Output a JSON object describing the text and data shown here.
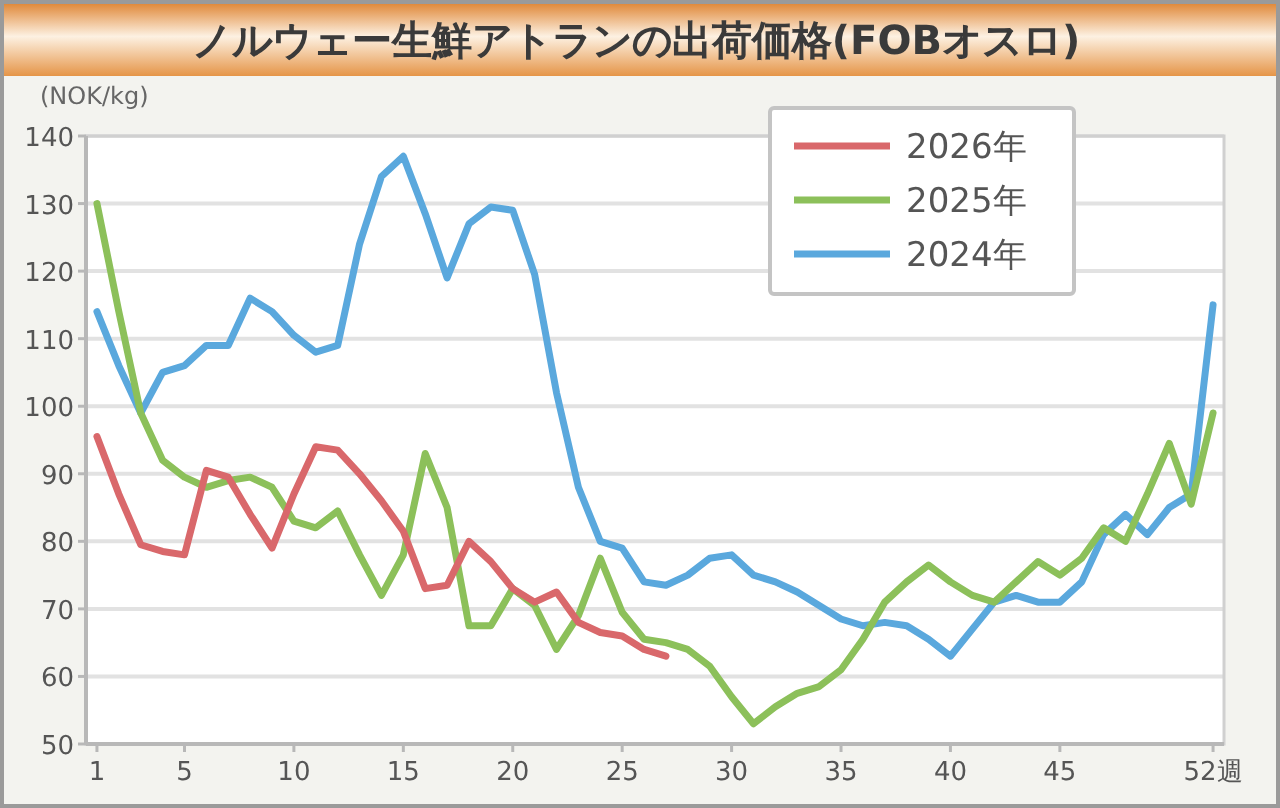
{
  "chart_data": {
    "type": "line",
    "title": "ノルウェー生鮮アトランの出荷価格(FOBオスロ)",
    "ylabel": "(NOK/kg)",
    "x": [
      1,
      2,
      3,
      4,
      5,
      6,
      7,
      8,
      9,
      10,
      11,
      12,
      13,
      14,
      15,
      16,
      17,
      18,
      19,
      20,
      21,
      22,
      23,
      24,
      25,
      26,
      27,
      28,
      29,
      30,
      31,
      32,
      33,
      34,
      35,
      36,
      37,
      38,
      39,
      40,
      41,
      42,
      43,
      44,
      45,
      46,
      47,
      48,
      49,
      50,
      51,
      52
    ],
    "series": [
      {
        "name": "2026年",
        "color": "#d9686b",
        "values": [
          95.5,
          87,
          79.5,
          78.5,
          78,
          90.5,
          89.5,
          84,
          79,
          87,
          94,
          93.5,
          90,
          86,
          81.5,
          73,
          73.5,
          80,
          77,
          73,
          71,
          72.5,
          68,
          66.5,
          66,
          64,
          63,
          null,
          null,
          null,
          null,
          null,
          null,
          null,
          null,
          null,
          null,
          null,
          null,
          null,
          null,
          null,
          null,
          null,
          null,
          null,
          null,
          null,
          null,
          null,
          null,
          null
        ]
      },
      {
        "name": "2025年",
        "color": "#8cc05a",
        "values": [
          130,
          114,
          99,
          92,
          89.5,
          88,
          89,
          89.5,
          88,
          83,
          82,
          84.5,
          78,
          72,
          78,
          93,
          85,
          67.5,
          67.5,
          73,
          70.5,
          64,
          69,
          77.5,
          69.5,
          65.5,
          65,
          64,
          61.5,
          57,
          53,
          55.5,
          57.5,
          58.5,
          61,
          65.5,
          71,
          74,
          76.5,
          74,
          72,
          71,
          74,
          77,
          75,
          77.5,
          82,
          80,
          87,
          94.5,
          85.5,
          99
        ]
      },
      {
        "name": "2024年",
        "color": "#5aa8dd",
        "values": [
          114,
          106,
          99,
          105,
          106,
          109,
          109,
          116,
          114,
          110.5,
          108,
          109,
          124,
          134,
          137,
          128.5,
          119,
          127,
          129.5,
          129,
          119.5,
          102,
          88,
          80,
          79,
          74,
          73.5,
          75,
          77.5,
          78,
          75,
          74,
          72.5,
          70.5,
          68.5,
          67.5,
          68,
          67.5,
          65.5,
          63,
          67,
          71,
          72,
          71,
          71,
          74,
          81,
          84,
          81,
          85,
          87,
          115
        ]
      }
    ],
    "xlim": [
      0.5,
      52.5
    ],
    "xticks": [
      1,
      5,
      10,
      15,
      20,
      25,
      30,
      35,
      40,
      45,
      {
        "value": 52,
        "label": "52週"
      }
    ],
    "ylim": [
      50,
      140
    ],
    "yticks": [
      50,
      60,
      70,
      80,
      90,
      100,
      110,
      120,
      130,
      140
    ],
    "grid": "y",
    "legend": "top right"
  }
}
